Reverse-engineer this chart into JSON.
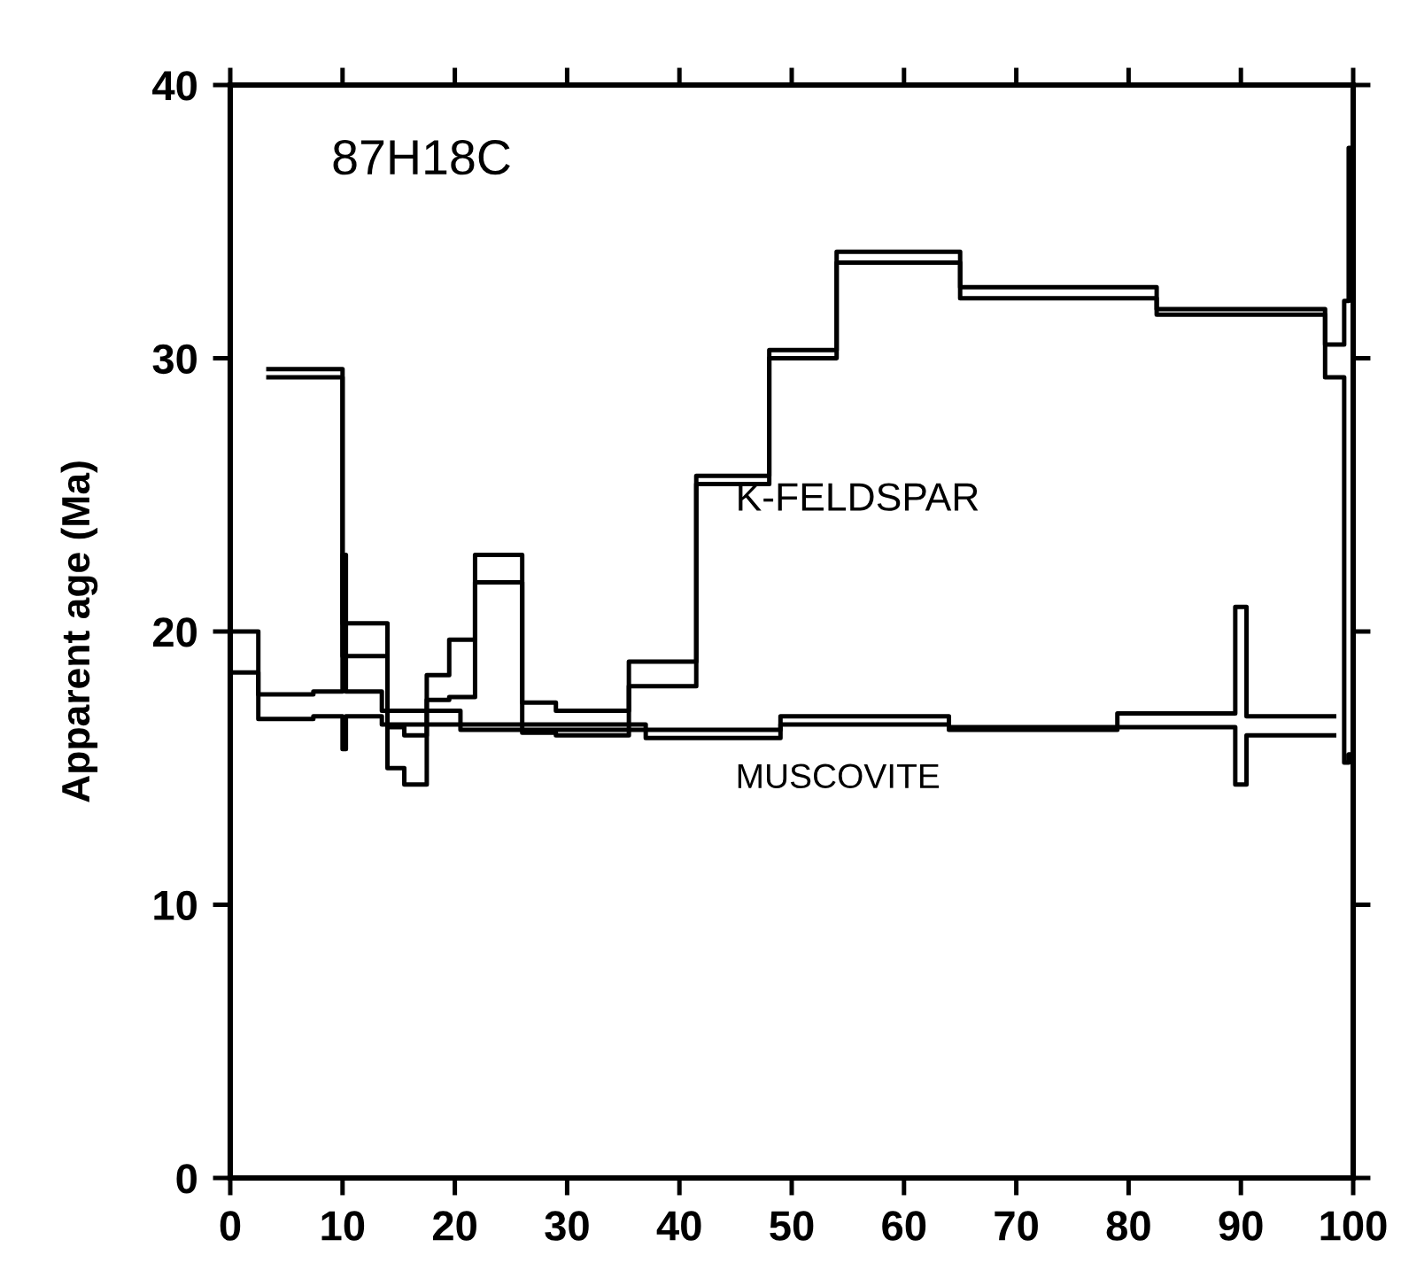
{
  "chart_data": {
    "type": "step",
    "ylabel": "Apparent age (Ma)",
    "annotations": [
      "87H18C",
      "K-FELDSPAR",
      "MUSCOVITE"
    ],
    "xlim": [
      0,
      100
    ],
    "ylim": [
      0,
      40
    ],
    "xticks": [
      0,
      10,
      20,
      30,
      40,
      50,
      60,
      70,
      80,
      90,
      100
    ],
    "yticks": [
      0,
      10,
      20,
      30,
      40
    ],
    "grid": false,
    "legend": false,
    "marker": "none",
    "line_style": "solid",
    "series": [
      {
        "color": "#000000",
        "x": [
          3.2,
          10,
          14,
          15.5,
          17.5,
          19.5,
          21.8,
          26,
          29,
          35.5,
          41.5,
          48,
          54,
          65,
          82.5,
          97.5,
          99.2,
          99.6,
          100
        ],
        "values": [
          29.6,
          20.3,
          16.5,
          16.2,
          18.4,
          19.7,
          22.8,
          17.4,
          17.1,
          18.9,
          25.7,
          30.3,
          33.9,
          32.6,
          31.8,
          30.5,
          32.1,
          37.7,
          37.7
        ]
      },
      {
        "color": "#000000",
        "x": [
          3.2,
          10,
          14,
          15.5,
          17.5,
          19.5,
          21.8,
          26,
          29,
          35.5,
          41.5,
          48,
          54,
          65,
          82.5,
          97.5,
          99.2,
          99.6,
          100
        ],
        "values": [
          29.3,
          19.1,
          15.0,
          14.4,
          17.5,
          17.6,
          21.8,
          16.3,
          16.2,
          18.0,
          25.4,
          30.0,
          33.5,
          32.2,
          31.6,
          29.3,
          15.2,
          15.5,
          15.5
        ]
      },
      {
        "color": "#000000",
        "x": [
          0,
          2.5,
          7.4,
          10,
          10.3,
          13.5,
          20.5,
          37,
          49,
          64,
          79,
          89.5,
          90.5,
          98.5
        ],
        "values": [
          20.0,
          17.7,
          17.8,
          22.8,
          17.8,
          17.1,
          16.6,
          16.4,
          16.9,
          16.5,
          17.0,
          20.9,
          16.9,
          16.9
        ]
      },
      {
        "color": "#000000",
        "x": [
          0,
          2.5,
          7.4,
          10,
          10.3,
          13.5,
          20.5,
          37,
          49,
          64,
          79,
          89.5,
          90.5,
          98.5
        ],
        "values": [
          18.5,
          16.8,
          16.9,
          15.7,
          16.9,
          16.6,
          16.4,
          16.1,
          16.6,
          16.4,
          16.5,
          14.4,
          16.2,
          16.2
        ]
      }
    ]
  }
}
